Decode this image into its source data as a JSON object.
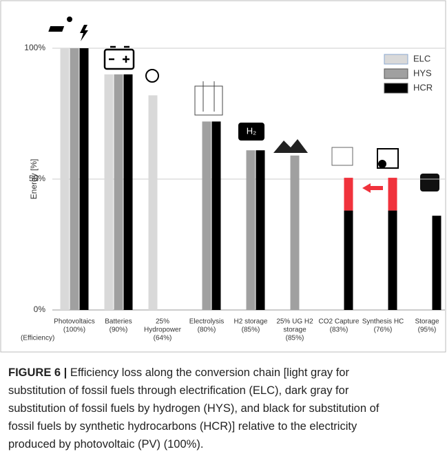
{
  "chart_data": {
    "type": "bar",
    "y_axis_label": "Energy [%]",
    "x_note": "(Efficiency)",
    "categories": [
      [
        "Photovoltaics",
        "(100%)"
      ],
      [
        "Batteries",
        "(90%)"
      ],
      [
        "25%",
        "Hydropower",
        "(64%)"
      ],
      [
        "Electrolysis",
        "(80%)"
      ],
      [
        "H2 storage",
        "(85%)"
      ],
      [
        "25% UG H2",
        "storage",
        "(85%)"
      ],
      [
        "CO2 Capture",
        "(83%)"
      ],
      [
        "Synthesis HC",
        "(76%)"
      ],
      [
        "Storage",
        "(95%)"
      ]
    ],
    "series": [
      {
        "name": "ELC",
        "color": "#d9d9d9",
        "values": [
          100,
          90,
          82,
          null,
          null,
          null,
          null,
          null,
          null
        ]
      },
      {
        "name": "HYS",
        "color": "#a0a0a0",
        "values": [
          100,
          90,
          null,
          72,
          61,
          59,
          null,
          null,
          null
        ]
      },
      {
        "name": "HCR",
        "color": "#000000",
        "values": [
          100,
          90,
          null,
          72,
          61,
          null,
          38,
          38,
          36
        ]
      }
    ],
    "stack_on_HCR": {
      "color": "#f0323c",
      "values": [
        null,
        null,
        null,
        null,
        null,
        null,
        12.5,
        12.5,
        null
      ]
    },
    "ylim": [
      0,
      110
    ],
    "yticks": [
      {
        "value": 0,
        "label": "0%"
      },
      {
        "value": 50,
        "label": "50%"
      },
      {
        "value": 100,
        "label": "100%"
      }
    ],
    "grid": true,
    "legend": "top-right"
  },
  "caption": {
    "label": "FIGURE 6 |",
    "lines": [
      " Efficiency loss along the conversion chain [light gray for",
      "substitution of fossil fuels through electrification (ELC), dark gray for",
      "substitution of fossil fuels by hydrogen (HYS), and black for substitution of",
      "fossil fuels by synthetic hydrocarbons (HCR)] relative to the electricity",
      "produced by photovoltaic (PV) (100%)."
    ]
  }
}
